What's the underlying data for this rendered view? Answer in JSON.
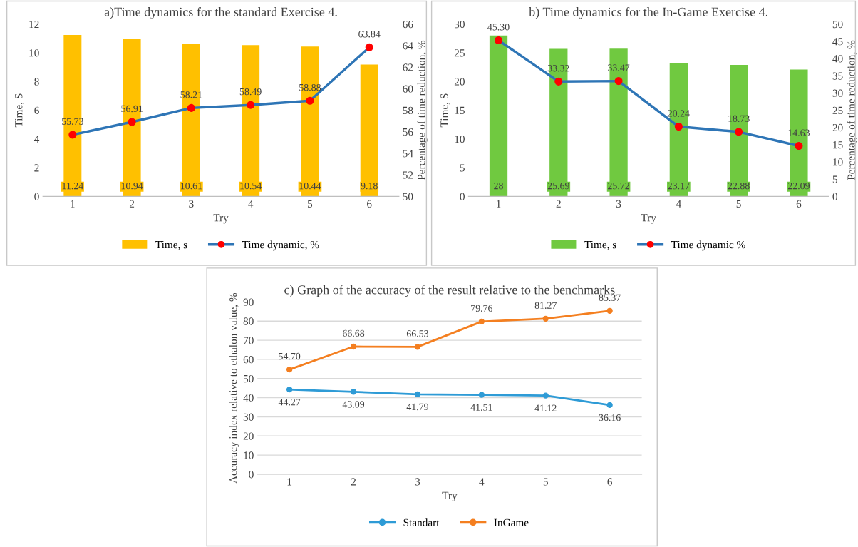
{
  "chart_data": [
    {
      "type": "bar",
      "title": "a)Time dynamics for the standard Exercise 4.",
      "xlabel": "Try",
      "ylabel": "Time, S",
      "y2label": "Percentage of time reduction, %",
      "categories": [
        "1",
        "2",
        "3",
        "4",
        "5",
        "6"
      ],
      "ylim": [
        0,
        12
      ],
      "yticks": [
        0,
        2,
        4,
        6,
        8,
        10,
        12
      ],
      "y2lim": [
        50,
        66
      ],
      "y2ticks": [
        50,
        52,
        54,
        56,
        58,
        60,
        62,
        64,
        66
      ],
      "grid": false,
      "legend": "bottom",
      "data_labels": true,
      "marker": "circle",
      "series": [
        {
          "name": "Time, s",
          "color": "#ffc000",
          "values": [
            11.24,
            10.94,
            10.61,
            10.54,
            10.44,
            9.18
          ]
        },
        {
          "name": "Time dynamic, %",
          "type": "line",
          "axis": "y2",
          "color": "#2e75b6",
          "values": [
            55.73,
            56.91,
            58.21,
            58.49,
            58.88,
            63.84
          ]
        }
      ]
    },
    {
      "type": "bar",
      "title": "b) Time dynamics for the In-Game Exercise 4.",
      "xlabel": "Try",
      "ylabel": "Time, S",
      "y2label": "Percentage of time reduction, %",
      "categories": [
        "1",
        "2",
        "3",
        "4",
        "5",
        "6"
      ],
      "ylim": [
        0,
        30
      ],
      "yticks": [
        0,
        5,
        10,
        15,
        20,
        25,
        30
      ],
      "y2lim": [
        0,
        50
      ],
      "y2ticks": [
        0,
        5,
        10,
        15,
        20,
        25,
        30,
        35,
        40,
        45,
        50
      ],
      "grid": false,
      "legend": "bottom",
      "data_labels": true,
      "marker": "circle",
      "series": [
        {
          "name": "Time, s",
          "color": "#70c940",
          "values": [
            28,
            25.69,
            25.72,
            23.17,
            22.88,
            22.09
          ]
        },
        {
          "name": "Time dynamic %",
          "type": "line",
          "axis": "y2",
          "color": "#2e75b6",
          "values": [
            45.3,
            33.32,
            33.47,
            20.24,
            18.73,
            14.63
          ],
          "value_labels": [
            "45.30",
            "33.32",
            "33.47",
            "20.24",
            "18.73",
            "14.63"
          ]
        }
      ]
    },
    {
      "type": "line",
      "title": "c) Graph of the accuracy of the result relative to the benchmarks",
      "xlabel": "Try",
      "ylabel": "Accuracy index relative to ethalon value, %",
      "categories": [
        "1",
        "2",
        "3",
        "4",
        "5",
        "6"
      ],
      "ylim": [
        0,
        90
      ],
      "yticks": [
        0,
        10,
        20,
        30,
        40,
        50,
        60,
        70,
        80,
        90
      ],
      "grid": "y",
      "legend": "bottom",
      "data_labels": true,
      "marker": "circle",
      "series": [
        {
          "name": "Standart",
          "color": "#2e9bd6",
          "values": [
            44.27,
            43.09,
            41.79,
            41.51,
            41.12,
            36.16
          ]
        },
        {
          "name": "InGame",
          "color": "#f47f20",
          "values": [
            54.7,
            66.68,
            66.53,
            79.76,
            81.27,
            85.37
          ],
          "value_labels": [
            "54.70",
            "66.68",
            "66.53",
            "79.76",
            "81.27",
            "85.37"
          ]
        }
      ]
    }
  ]
}
